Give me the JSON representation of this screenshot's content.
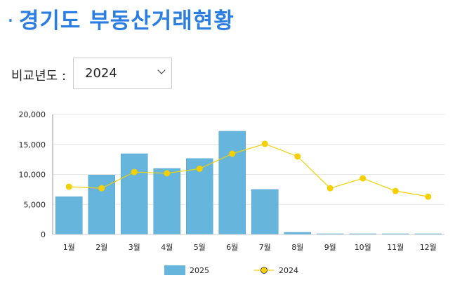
{
  "header": {
    "bullet": "·",
    "title": "경기도 부동산거래현황"
  },
  "filter": {
    "label": "비교년도 :",
    "selected": "2024"
  },
  "chart_data": {
    "type": "bar",
    "categories": [
      "1월",
      "2월",
      "3월",
      "4월",
      "5월",
      "6월",
      "7월",
      "8월",
      "9월",
      "10월",
      "11월",
      "12월"
    ],
    "series": [
      {
        "name": "2025",
        "type": "bar",
        "color": "#66b5dd",
        "values": [
          6300,
          9900,
          13450,
          11000,
          12650,
          17200,
          7500,
          350,
          0,
          0,
          0,
          0
        ]
      },
      {
        "name": "2024",
        "type": "line",
        "color": "#f5d000",
        "values": [
          7950,
          7700,
          10400,
          10200,
          10950,
          13450,
          15100,
          13000,
          7700,
          9350,
          7250,
          6300
        ]
      }
    ],
    "ylim": [
      0,
      20000
    ],
    "yticks": [
      "0",
      "5,000",
      "10,000",
      "15,000",
      "20,000"
    ],
    "grid": true,
    "legend": "bottom"
  }
}
